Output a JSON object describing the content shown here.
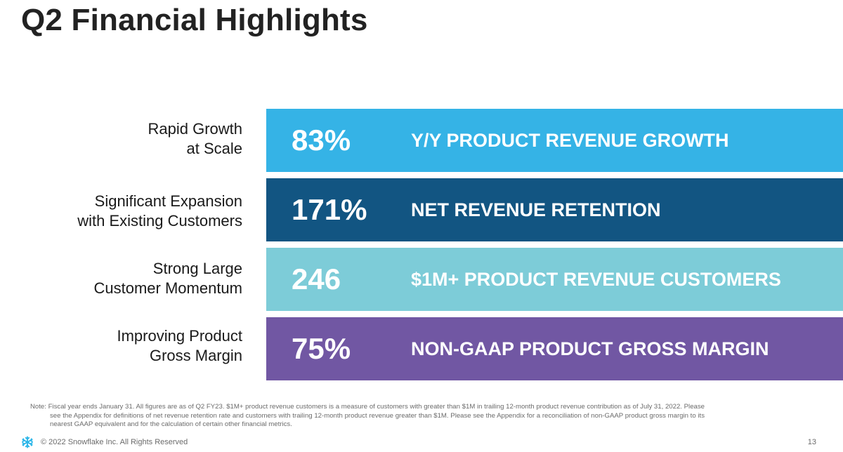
{
  "title": "Q2 Financial Highlights",
  "colors": {
    "row1": "#35b3e6",
    "row2": "#125582",
    "row3": "#7dccd8",
    "row4": "#7157a3",
    "snowflake": "#29b5e8"
  },
  "highlights": [
    {
      "label_line1": "Rapid Growth",
      "label_line2": "at Scale",
      "metric": "83%",
      "description": "Y/Y PRODUCT REVENUE GROWTH"
    },
    {
      "label_line1": "Significant Expansion",
      "label_line2": "with Existing Customers",
      "metric": "171%",
      "description": "NET REVENUE RETENTION"
    },
    {
      "label_line1": "Strong Large",
      "label_line2": "Customer Momentum",
      "metric": "246",
      "description": "$1M+ PRODUCT REVENUE CUSTOMERS"
    },
    {
      "label_line1": "Improving Product",
      "label_line2": "Gross Margin",
      "metric": "75%",
      "description": "NON-GAAP PRODUCT GROSS MARGIN"
    }
  ],
  "note": "Note: Fiscal year ends January 31. All figures are as of Q2 FY23. $1M+ product revenue customers is a measure of customers with greater than $1M in trailing 12-month product revenue contribution as of July 31, 2022. Please see the Appendix for definitions of net revenue retention rate and customers with trailing 12-month product revenue greater than $1M. Please see the Appendix for a reconciliation of non-GAAP product gross margin to its nearest GAAP equivalent and for the calculation of certain other financial metrics.",
  "footer": {
    "logo_icon": "snowflake-icon",
    "copyright": "© 2022 Snowflake Inc. All Rights Reserved",
    "page_number": "13"
  }
}
